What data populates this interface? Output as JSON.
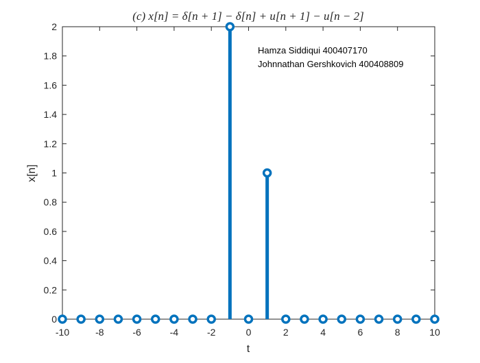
{
  "chart_data": {
    "type": "stem",
    "title": "(c)    x[n] = δ[n + 1] − δ[n] + u[n + 1] − u[n − 2]",
    "xlabel": "t",
    "ylabel": "x[n]",
    "xlim": [
      -10,
      10
    ],
    "ylim": [
      0,
      2
    ],
    "xticks": [
      "-10",
      "-8",
      "-6",
      "-4",
      "-2",
      "0",
      "2",
      "4",
      "6",
      "8",
      "10"
    ],
    "xtick_values": [
      -10,
      -8,
      -6,
      -4,
      -2,
      0,
      2,
      4,
      6,
      8,
      10
    ],
    "yticks": [
      "0",
      "0.2",
      "0.4",
      "0.6",
      "0.8",
      "1",
      "1.2",
      "1.4",
      "1.6",
      "1.8",
      "2"
    ],
    "ytick_values": [
      0,
      0.2,
      0.4,
      0.6,
      0.8,
      1,
      1.2,
      1.4,
      1.6,
      1.8,
      2
    ],
    "x": [
      -10,
      -9,
      -8,
      -7,
      -6,
      -5,
      -4,
      -3,
      -2,
      -1,
      0,
      1,
      2,
      3,
      4,
      5,
      6,
      7,
      8,
      9,
      10
    ],
    "values": [
      0,
      0,
      0,
      0,
      0,
      0,
      0,
      0,
      0,
      2,
      0,
      1,
      0,
      0,
      0,
      0,
      0,
      0,
      0,
      0,
      0
    ],
    "grid": false,
    "annotations": [
      "Hamza Siddiqui 400407170",
      "Johnnathan Gershkovich 400408809"
    ],
    "colors": {
      "stem": "#0072BD",
      "axis": "#262626"
    }
  }
}
